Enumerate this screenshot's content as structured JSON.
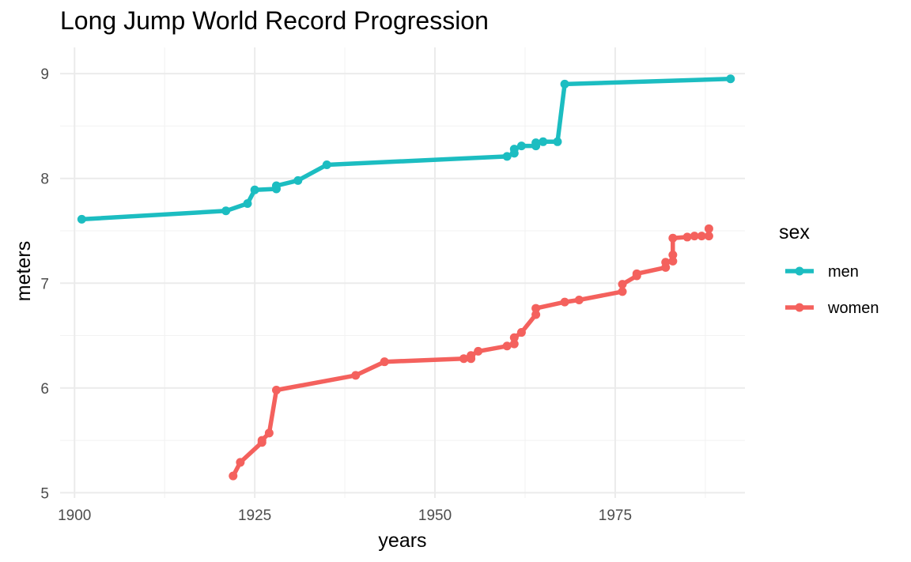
{
  "chart_data": {
    "type": "line",
    "title": "Long Jump World Record Progression",
    "xlabel": "years",
    "ylabel": "meters",
    "xlim": [
      1898,
      1993
    ],
    "ylim": [
      4.95,
      9.25
    ],
    "x_ticks": [
      1900,
      1925,
      1950,
      1975
    ],
    "y_ticks": [
      5,
      6,
      7,
      8,
      9
    ],
    "grid": true,
    "legend": {
      "title": "sex",
      "position": "right"
    },
    "series": [
      {
        "name": "men",
        "color": "#1cbdc1",
        "points": [
          [
            1901,
            7.61
          ],
          [
            1921,
            7.69
          ],
          [
            1924,
            7.76
          ],
          [
            1925,
            7.89
          ],
          [
            1928,
            7.9
          ],
          [
            1928,
            7.93
          ],
          [
            1931,
            7.98
          ],
          [
            1935,
            8.13
          ],
          [
            1960,
            8.21
          ],
          [
            1961,
            8.24
          ],
          [
            1961,
            8.28
          ],
          [
            1962,
            8.31
          ],
          [
            1964,
            8.31
          ],
          [
            1964,
            8.34
          ],
          [
            1965,
            8.35
          ],
          [
            1967,
            8.35
          ],
          [
            1968,
            8.9
          ],
          [
            1991,
            8.95
          ]
        ]
      },
      {
        "name": "women",
        "color": "#f4615d",
        "points": [
          [
            1922,
            5.16
          ],
          [
            1923,
            5.29
          ],
          [
            1926,
            5.48
          ],
          [
            1926,
            5.5
          ],
          [
            1927,
            5.57
          ],
          [
            1928,
            5.98
          ],
          [
            1939,
            6.12
          ],
          [
            1943,
            6.25
          ],
          [
            1954,
            6.28
          ],
          [
            1955,
            6.28
          ],
          [
            1955,
            6.31
          ],
          [
            1956,
            6.35
          ],
          [
            1960,
            6.4
          ],
          [
            1961,
            6.42
          ],
          [
            1961,
            6.48
          ],
          [
            1962,
            6.53
          ],
          [
            1964,
            6.7
          ],
          [
            1964,
            6.76
          ],
          [
            1968,
            6.82
          ],
          [
            1970,
            6.84
          ],
          [
            1976,
            6.92
          ],
          [
            1976,
            6.99
          ],
          [
            1978,
            7.07
          ],
          [
            1978,
            7.09
          ],
          [
            1982,
            7.15
          ],
          [
            1982,
            7.2
          ],
          [
            1983,
            7.21
          ],
          [
            1983,
            7.27
          ],
          [
            1983,
            7.43
          ],
          [
            1985,
            7.44
          ],
          [
            1986,
            7.45
          ],
          [
            1987,
            7.45
          ],
          [
            1988,
            7.45
          ],
          [
            1988,
            7.52
          ]
        ]
      }
    ]
  }
}
